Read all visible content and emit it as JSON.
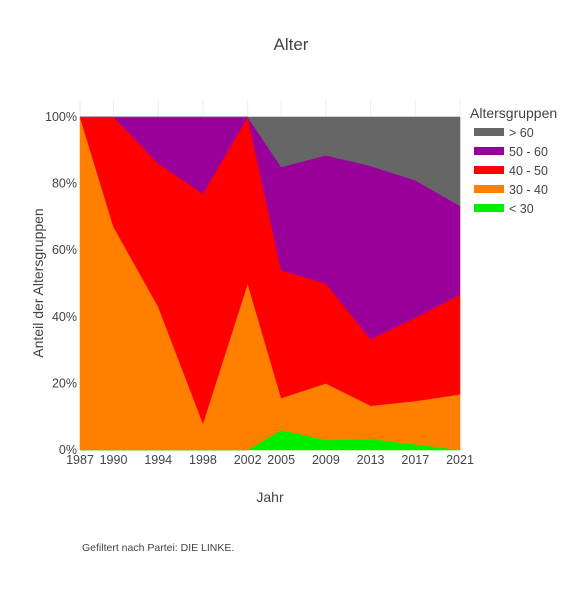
{
  "chart_data": {
    "type": "area",
    "stacked": true,
    "normalized": true,
    "title": "Alter",
    "xlabel": "Jahr",
    "ylabel": "Anteil der Altersgruppen",
    "x": [
      1987,
      1990,
      1994,
      1998,
      2002,
      2005,
      2009,
      2013,
      2017,
      2021
    ],
    "ylim": [
      0,
      100
    ],
    "yticks": [
      "0%",
      "20%",
      "40%",
      "60%",
      "80%",
      "100%"
    ],
    "xticks": [
      "1987",
      "1990",
      "1994",
      "1998",
      "2002",
      "2005",
      "2009",
      "2013",
      "2017",
      "2021"
    ],
    "grid": true,
    "legend_title": "Altersgruppen",
    "legend_position": "top-right",
    "note": "Gefiltert nach Partei: DIE LINKE.",
    "series": [
      {
        "name": "< 30",
        "color": "#00ee00",
        "values": [
          0,
          0,
          0,
          0,
          0,
          6,
          3,
          3.3,
          1.7,
          0
        ]
      },
      {
        "name": "30 - 40",
        "color": "#ff8000",
        "values": [
          100,
          67,
          43,
          8,
          50,
          9.6,
          17,
          10,
          13,
          16.7
        ]
      },
      {
        "name": "40 - 50",
        "color": "#ff0000",
        "values": [
          0,
          33,
          43,
          69,
          50,
          38.4,
          30,
          20,
          25,
          30
        ]
      },
      {
        "name": "50 - 60",
        "color": "#990099",
        "values": [
          0,
          0,
          14,
          23,
          0,
          31,
          38.5,
          52,
          41.3,
          26.6
        ]
      },
      {
        "name": "> 60",
        "color": "#666666",
        "values": [
          0,
          0,
          0,
          0,
          0,
          15,
          11.5,
          14.7,
          19,
          26.7
        ]
      }
    ],
    "legend_order": [
      "> 60",
      "50 - 60",
      "40 - 50",
      "30 - 40",
      "< 30"
    ]
  }
}
